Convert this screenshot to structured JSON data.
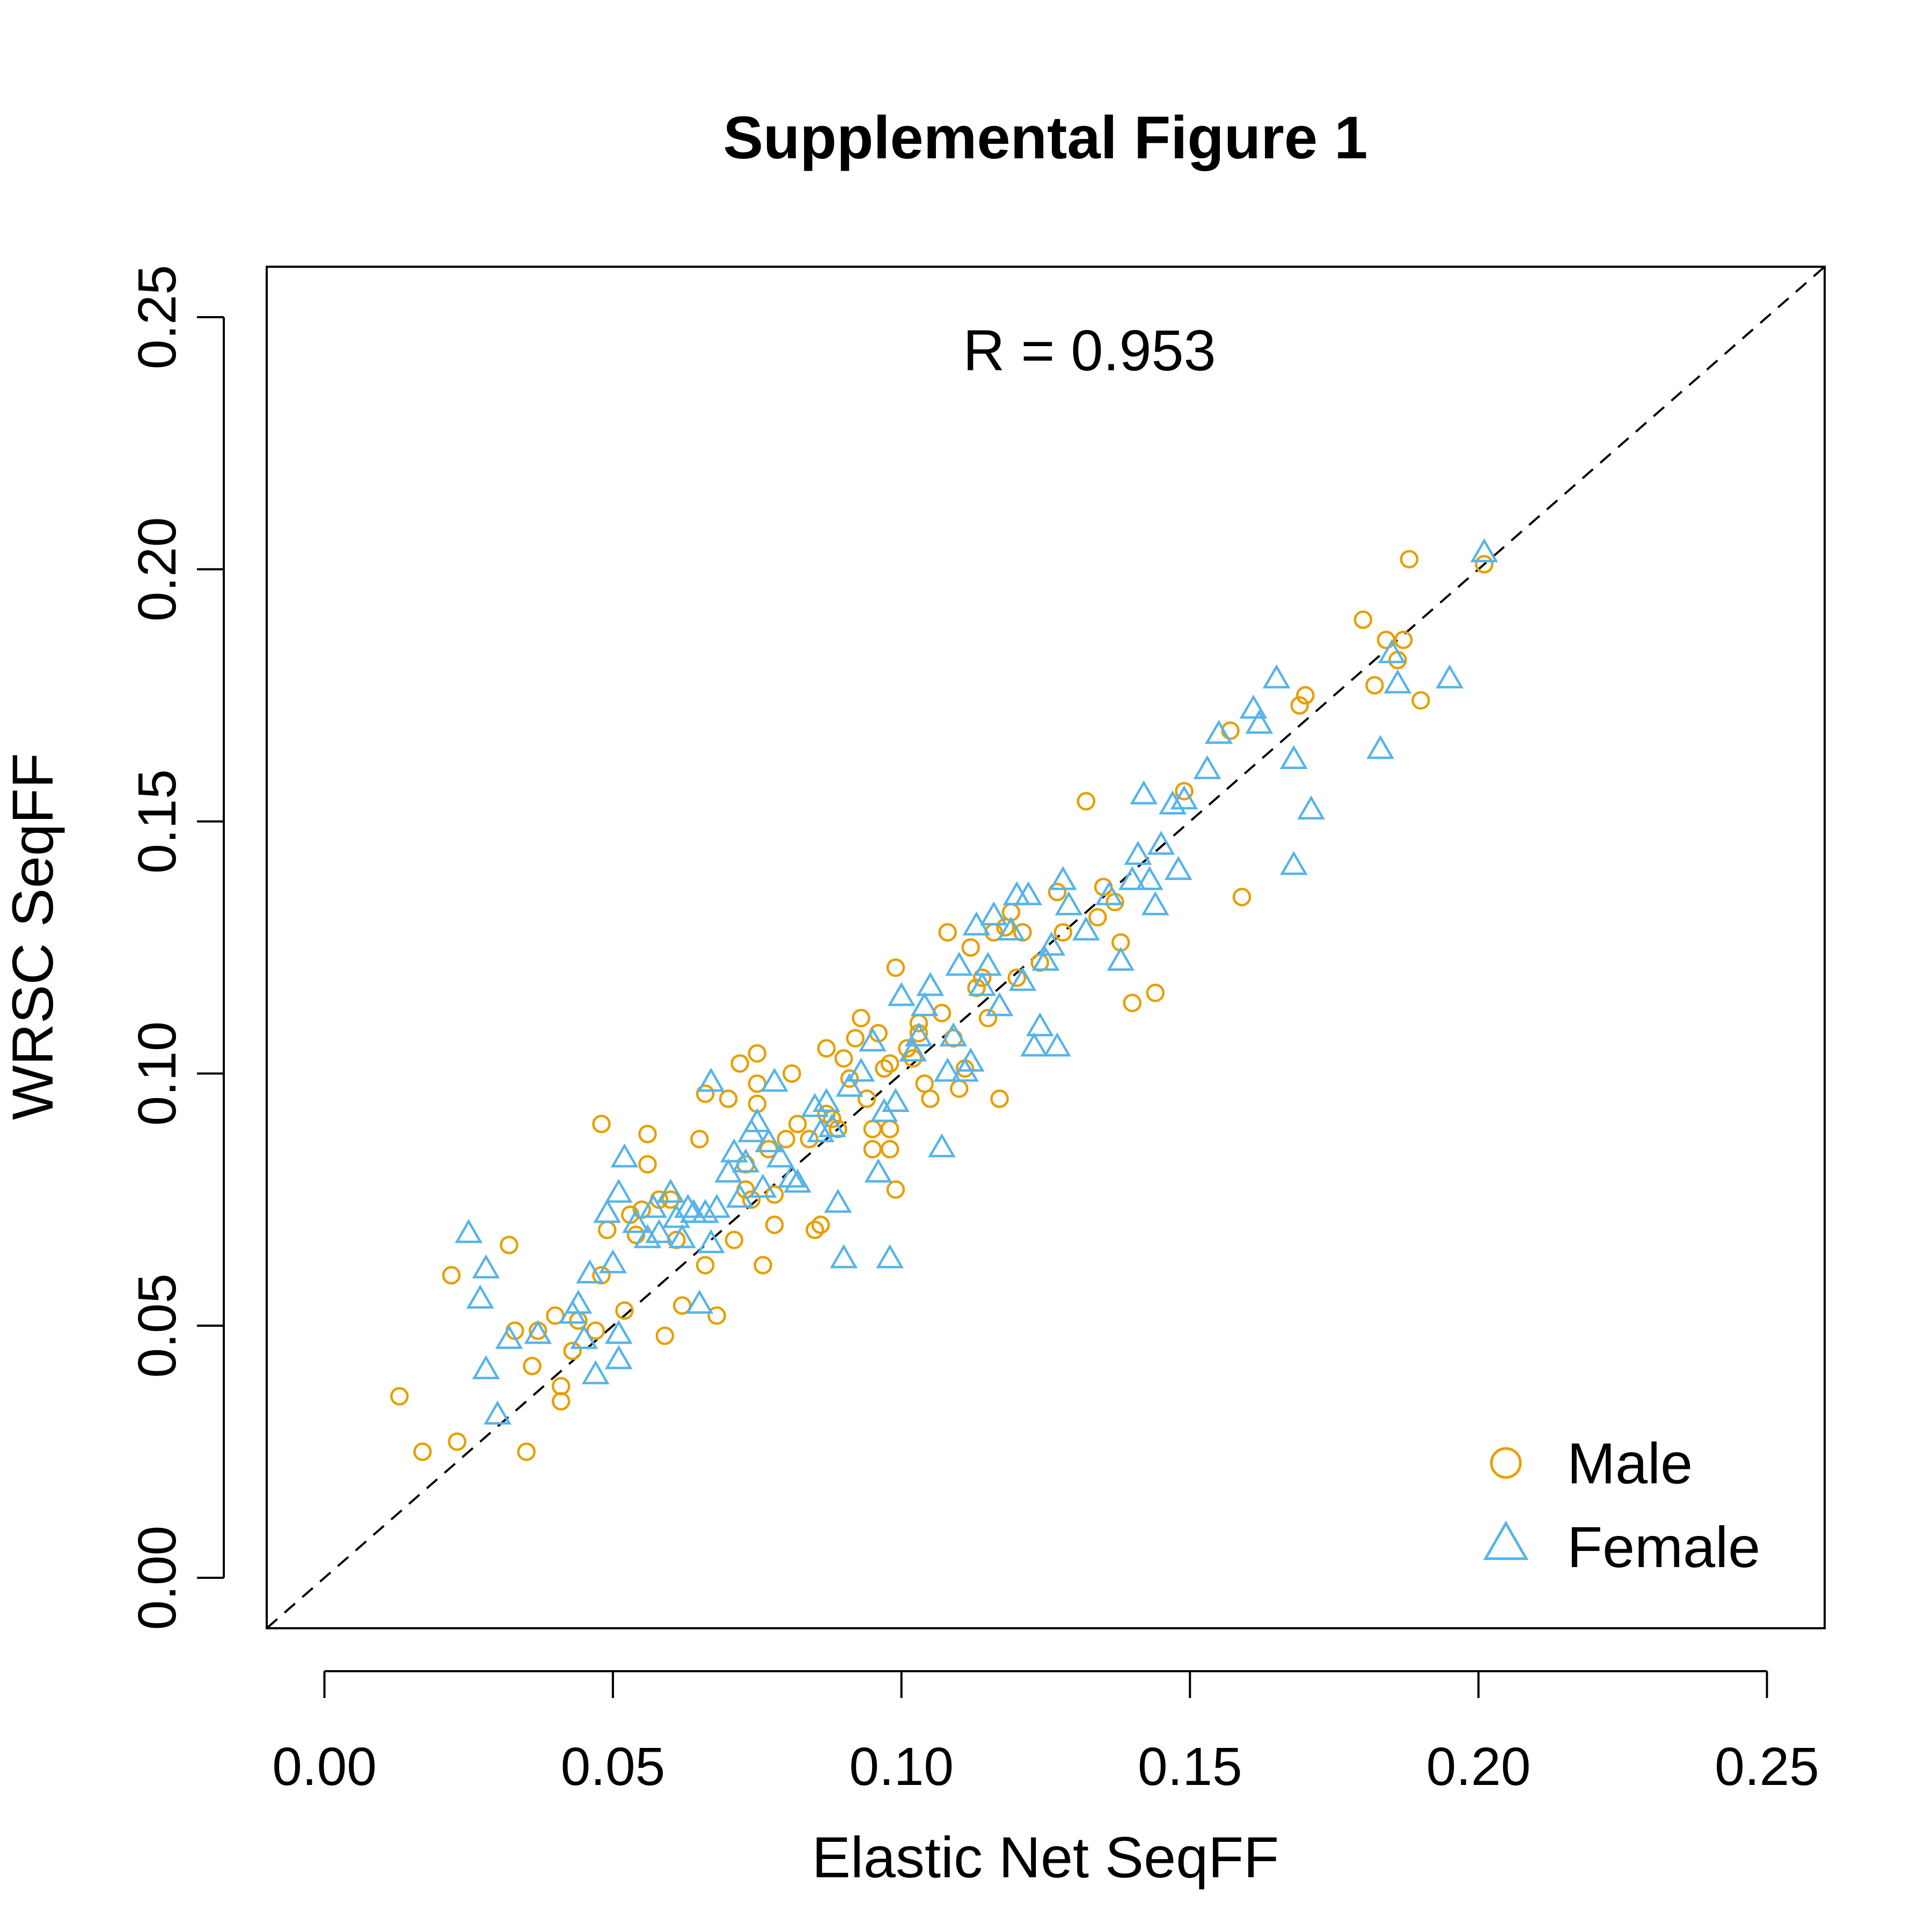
{
  "chart_data": {
    "type": "scatter",
    "title": "Supplemental Figure 1",
    "xlabel": "Elastic Net SeqFF",
    "ylabel": "WRSC SeqFF",
    "annotation": "R = 0.953",
    "xlim": [
      -0.01,
      0.26
    ],
    "ylim": [
      -0.01,
      0.26
    ],
    "xticks": [
      "0.00",
      "0.05",
      "0.10",
      "0.15",
      "0.20",
      "0.25"
    ],
    "yticks": [
      "0.00",
      "0.05",
      "0.10",
      "0.15",
      "0.20",
      "0.25"
    ],
    "reference_line": "y = x (dashed)",
    "grid": false,
    "legend_position": "bottom-right",
    "colors": {
      "male": "#E69F00",
      "female": "#56B4E9"
    },
    "series": [
      {
        "name": "Male",
        "marker": "circle",
        "points": [
          [
            0.013,
            0.036
          ],
          [
            0.017,
            0.025
          ],
          [
            0.022,
            0.06
          ],
          [
            0.023,
            0.027
          ],
          [
            0.032,
            0.066
          ],
          [
            0.033,
            0.049
          ],
          [
            0.035,
            0.025
          ],
          [
            0.036,
            0.042
          ],
          [
            0.037,
            0.049
          ],
          [
            0.04,
            0.052
          ],
          [
            0.041,
            0.038
          ],
          [
            0.041,
            0.035
          ],
          [
            0.043,
            0.045
          ],
          [
            0.044,
            0.051
          ],
          [
            0.047,
            0.049
          ],
          [
            0.048,
            0.06
          ],
          [
            0.048,
            0.09
          ],
          [
            0.049,
            0.069
          ],
          [
            0.052,
            0.053
          ],
          [
            0.053,
            0.072
          ],
          [
            0.054,
            0.068
          ],
          [
            0.055,
            0.073
          ],
          [
            0.056,
            0.088
          ],
          [
            0.056,
            0.082
          ],
          [
            0.058,
            0.075
          ],
          [
            0.059,
            0.048
          ],
          [
            0.06,
            0.075
          ],
          [
            0.061,
            0.067
          ],
          [
            0.062,
            0.054
          ],
          [
            0.065,
            0.087
          ],
          [
            0.066,
            0.096
          ],
          [
            0.066,
            0.062
          ],
          [
            0.068,
            0.052
          ],
          [
            0.07,
            0.095
          ],
          [
            0.071,
            0.067
          ],
          [
            0.072,
            0.102
          ],
          [
            0.073,
            0.082
          ],
          [
            0.073,
            0.077
          ],
          [
            0.074,
            0.075
          ],
          [
            0.075,
            0.104
          ],
          [
            0.075,
            0.098
          ],
          [
            0.075,
            0.094
          ],
          [
            0.076,
            0.062
          ],
          [
            0.077,
            0.085
          ],
          [
            0.078,
            0.07
          ],
          [
            0.078,
            0.076
          ],
          [
            0.08,
            0.087
          ],
          [
            0.081,
            0.1
          ],
          [
            0.082,
            0.09
          ],
          [
            0.084,
            0.087
          ],
          [
            0.085,
            0.069
          ],
          [
            0.086,
            0.07
          ],
          [
            0.087,
            0.105
          ],
          [
            0.087,
            0.092
          ],
          [
            0.088,
            0.091
          ],
          [
            0.089,
            0.089
          ],
          [
            0.09,
            0.103
          ],
          [
            0.091,
            0.099
          ],
          [
            0.092,
            0.107
          ],
          [
            0.093,
            0.111
          ],
          [
            0.094,
            0.095
          ],
          [
            0.095,
            0.089
          ],
          [
            0.095,
            0.085
          ],
          [
            0.096,
            0.108
          ],
          [
            0.097,
            0.101
          ],
          [
            0.098,
            0.102
          ],
          [
            0.098,
            0.089
          ],
          [
            0.098,
            0.085
          ],
          [
            0.099,
            0.077
          ],
          [
            0.099,
            0.121
          ],
          [
            0.101,
            0.105
          ],
          [
            0.102,
            0.103
          ],
          [
            0.103,
            0.11
          ],
          [
            0.103,
            0.108
          ],
          [
            0.104,
            0.098
          ],
          [
            0.105,
            0.095
          ],
          [
            0.107,
            0.112
          ],
          [
            0.108,
            0.128
          ],
          [
            0.109,
            0.107
          ],
          [
            0.11,
            0.097
          ],
          [
            0.111,
            0.101
          ],
          [
            0.112,
            0.125
          ],
          [
            0.113,
            0.117
          ],
          [
            0.114,
            0.119
          ],
          [
            0.115,
            0.111
          ],
          [
            0.116,
            0.128
          ],
          [
            0.117,
            0.095
          ],
          [
            0.118,
            0.129
          ],
          [
            0.119,
            0.132
          ],
          [
            0.12,
            0.119
          ],
          [
            0.121,
            0.128
          ],
          [
            0.124,
            0.122
          ],
          [
            0.127,
            0.136
          ],
          [
            0.128,
            0.128
          ],
          [
            0.132,
            0.154
          ],
          [
            0.134,
            0.131
          ],
          [
            0.135,
            0.137
          ],
          [
            0.137,
            0.134
          ],
          [
            0.138,
            0.126
          ],
          [
            0.14,
            0.114
          ],
          [
            0.144,
            0.116
          ],
          [
            0.149,
            0.156
          ],
          [
            0.157,
            0.168
          ],
          [
            0.159,
            0.135
          ],
          [
            0.169,
            0.173
          ],
          [
            0.17,
            0.175
          ],
          [
            0.18,
            0.19
          ],
          [
            0.182,
            0.177
          ],
          [
            0.184,
            0.186
          ],
          [
            0.186,
            0.182
          ],
          [
            0.187,
            0.186
          ],
          [
            0.188,
            0.202
          ],
          [
            0.19,
            0.174
          ],
          [
            0.201,
            0.201
          ]
        ]
      },
      {
        "name": "Female",
        "marker": "triangle",
        "points": [
          [
            0.025,
            0.068
          ],
          [
            0.027,
            0.055
          ],
          [
            0.028,
            0.041
          ],
          [
            0.028,
            0.061
          ],
          [
            0.03,
            0.032
          ],
          [
            0.032,
            0.047
          ],
          [
            0.037,
            0.048
          ],
          [
            0.043,
            0.052
          ],
          [
            0.044,
            0.054
          ],
          [
            0.045,
            0.047
          ],
          [
            0.046,
            0.06
          ],
          [
            0.047,
            0.04
          ],
          [
            0.049,
            0.072
          ],
          [
            0.05,
            0.062
          ],
          [
            0.051,
            0.043
          ],
          [
            0.051,
            0.048
          ],
          [
            0.051,
            0.076
          ],
          [
            0.052,
            0.083
          ],
          [
            0.054,
            0.07
          ],
          [
            0.056,
            0.067
          ],
          [
            0.057,
            0.073
          ],
          [
            0.058,
            0.068
          ],
          [
            0.06,
            0.076
          ],
          [
            0.061,
            0.071
          ],
          [
            0.062,
            0.067
          ],
          [
            0.063,
            0.073
          ],
          [
            0.064,
            0.072
          ],
          [
            0.065,
            0.054
          ],
          [
            0.066,
            0.072
          ],
          [
            0.067,
            0.098
          ],
          [
            0.067,
            0.066
          ],
          [
            0.068,
            0.073
          ],
          [
            0.07,
            0.08
          ],
          [
            0.071,
            0.084
          ],
          [
            0.072,
            0.075
          ],
          [
            0.073,
            0.082
          ],
          [
            0.074,
            0.088
          ],
          [
            0.075,
            0.09
          ],
          [
            0.076,
            0.077
          ],
          [
            0.077,
            0.086
          ],
          [
            0.078,
            0.098
          ],
          [
            0.079,
            0.083
          ],
          [
            0.081,
            0.079
          ],
          [
            0.082,
            0.078
          ],
          [
            0.085,
            0.093
          ],
          [
            0.086,
            0.088
          ],
          [
            0.087,
            0.094
          ],
          [
            0.088,
            0.089
          ],
          [
            0.089,
            0.074
          ],
          [
            0.09,
            0.063
          ],
          [
            0.091,
            0.097
          ],
          [
            0.093,
            0.1
          ],
          [
            0.095,
            0.106
          ],
          [
            0.096,
            0.08
          ],
          [
            0.097,
            0.092
          ],
          [
            0.098,
            0.063
          ],
          [
            0.099,
            0.094
          ],
          [
            0.1,
            0.115
          ],
          [
            0.102,
            0.104
          ],
          [
            0.103,
            0.107
          ],
          [
            0.104,
            0.113
          ],
          [
            0.105,
            0.117
          ],
          [
            0.107,
            0.085
          ],
          [
            0.108,
            0.1
          ],
          [
            0.109,
            0.107
          ],
          [
            0.11,
            0.121
          ],
          [
            0.111,
            0.1
          ],
          [
            0.112,
            0.102
          ],
          [
            0.113,
            0.129
          ],
          [
            0.114,
            0.117
          ],
          [
            0.115,
            0.121
          ],
          [
            0.116,
            0.131
          ],
          [
            0.117,
            0.113
          ],
          [
            0.119,
            0.128
          ],
          [
            0.12,
            0.135
          ],
          [
            0.121,
            0.118
          ],
          [
            0.122,
            0.135
          ],
          [
            0.123,
            0.105
          ],
          [
            0.124,
            0.109
          ],
          [
            0.125,
            0.122
          ],
          [
            0.126,
            0.125
          ],
          [
            0.127,
            0.105
          ],
          [
            0.128,
            0.138
          ],
          [
            0.129,
            0.133
          ],
          [
            0.132,
            0.128
          ],
          [
            0.136,
            0.135
          ],
          [
            0.138,
            0.122
          ],
          [
            0.14,
            0.138
          ],
          [
            0.141,
            0.143
          ],
          [
            0.142,
            0.155
          ],
          [
            0.143,
            0.138
          ],
          [
            0.144,
            0.133
          ],
          [
            0.145,
            0.145
          ],
          [
            0.147,
            0.153
          ],
          [
            0.148,
            0.14
          ],
          [
            0.149,
            0.154
          ],
          [
            0.153,
            0.16
          ],
          [
            0.155,
            0.167
          ],
          [
            0.161,
            0.172
          ],
          [
            0.162,
            0.169
          ],
          [
            0.165,
            0.178
          ],
          [
            0.168,
            0.162
          ],
          [
            0.168,
            0.141
          ],
          [
            0.171,
            0.152
          ],
          [
            0.183,
            0.164
          ],
          [
            0.185,
            0.183
          ],
          [
            0.186,
            0.177
          ],
          [
            0.195,
            0.178
          ],
          [
            0.201,
            0.203
          ]
        ]
      }
    ]
  }
}
